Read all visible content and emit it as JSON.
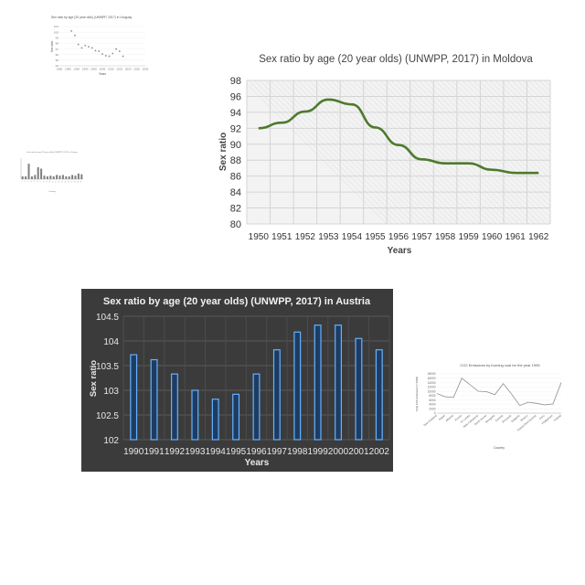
{
  "colors": {
    "moldova_line": "#4e7a2d",
    "austria_bg": "#3b3b3b",
    "austria_bar_fill": "#1e3c63",
    "austria_bar_stroke": "#66b2ff",
    "small_line": "#9a9a9a",
    "small_points": "#8c8c8c"
  },
  "chart_data": [
    {
      "id": "uruguay",
      "type": "scatter",
      "title": "Sex ratio by age (20 year olds) (UNWPP, 2017) in Uruguay",
      "xlabel": "Years",
      "ylabel": "Sex ratio",
      "xlim": [
        1980,
        2030
      ],
      "ylim": [
        94,
        101
      ],
      "x_ticks": [
        "1980",
        "1985",
        "1990",
        "1995",
        "2000",
        "2005",
        "2010",
        "2015",
        "2020",
        "2025",
        "2030"
      ],
      "y_ticks": [
        "101",
        "100",
        "99",
        "98",
        "97",
        "96",
        "95",
        "94"
      ],
      "x": [
        1987,
        1989,
        1991,
        1993,
        1995,
        1997,
        1999,
        2001,
        2003,
        2005,
        2007,
        2009,
        2011,
        2013,
        2015,
        2017
      ],
      "values": [
        100.2,
        99.4,
        97.8,
        97.2,
        97.6,
        97.4,
        97.2,
        96.7,
        96.6,
        96.1,
        95.8,
        95.7,
        96.2,
        97.0,
        96.6,
        95.7
      ]
    },
    {
      "id": "small-bars",
      "type": "bar",
      "title": "Sex ratio by age (20 year olds) (UNWPP, 2017) in Europe",
      "xlabel": "Country",
      "ylabel": "",
      "categories": [
        "1",
        "2",
        "3",
        "4",
        "5",
        "6",
        "7",
        "8",
        "9",
        "10",
        "11",
        "12",
        "13",
        "14",
        "15",
        "16",
        "17",
        "18",
        "19",
        "20"
      ],
      "values": [
        20,
        20,
        110,
        20,
        30,
        85,
        75,
        25,
        20,
        25,
        20,
        30,
        25,
        30,
        20,
        20,
        30,
        25,
        40,
        35
      ],
      "ylim": [
        0,
        150
      ]
    },
    {
      "id": "moldova",
      "type": "line",
      "title": "Sex ratio by age (20 year olds) (UNWPP, 2017) in Moldova",
      "xlabel": "Years",
      "ylabel": "Sex ratio",
      "categories": [
        "1950",
        "1951",
        "1952",
        "1953",
        "1954",
        "1955",
        "1956",
        "1957",
        "1958",
        "1959",
        "1960",
        "1961",
        "1962"
      ],
      "values": [
        92.0,
        92.7,
        94.1,
        95.6,
        95.0,
        92.1,
        89.9,
        88.1,
        87.6,
        87.6,
        86.8,
        86.4,
        86.4
      ],
      "ylim": [
        80,
        98
      ],
      "y_ticks": [
        "80",
        "82",
        "84",
        "86",
        "88",
        "90",
        "92",
        "94",
        "96",
        "98"
      ],
      "grid": true
    },
    {
      "id": "austria",
      "type": "bar",
      "title": "Sex ratio by age (20 year olds) (UNWPP, 2017) in Austria",
      "xlabel": "Years",
      "ylabel": "Sex ratio",
      "categories": [
        "1990",
        "1991",
        "1992",
        "1993",
        "1994",
        "1995",
        "1996",
        "1997",
        "1998",
        "1999",
        "2000",
        "2001",
        "2002"
      ],
      "values": [
        103.72,
        103.62,
        103.33,
        103.0,
        102.82,
        102.92,
        103.33,
        103.82,
        104.18,
        104.32,
        104.32,
        104.05,
        103.82
      ],
      "ylim": [
        102,
        104.5
      ],
      "y_ticks": [
        "102",
        "102.5",
        "103",
        "103.5",
        "104",
        "104.5"
      ],
      "grid": true
    },
    {
      "id": "co2",
      "type": "line",
      "title": "CO2 Emissions by burning coal for the year 1995",
      "xlabel": "Country",
      "ylabel": "Total CO2 Emissions (*1000)",
      "categories": [
        "New Zealand",
        "Nepal",
        "Albania",
        "Kenya",
        "Sri Lanka",
        "New Caledonia",
        "North Korea",
        "Mongolia",
        "Zambia",
        "Romania",
        "Bulgaria",
        "Mexico",
        "Papua New Guinea",
        "Peru",
        "Philippines",
        "Poland"
      ],
      "values": [
        9000,
        7500,
        7200,
        16000,
        13000,
        10000,
        9800,
        8500,
        13500,
        8800,
        3500,
        5000,
        4500,
        3800,
        4200,
        14000
      ],
      "ylim": [
        0,
        18000
      ],
      "y_ticks": [
        "0",
        "2000",
        "4000",
        "6000",
        "8000",
        "10000",
        "12000",
        "14000",
        "16000",
        "18000"
      ]
    }
  ]
}
